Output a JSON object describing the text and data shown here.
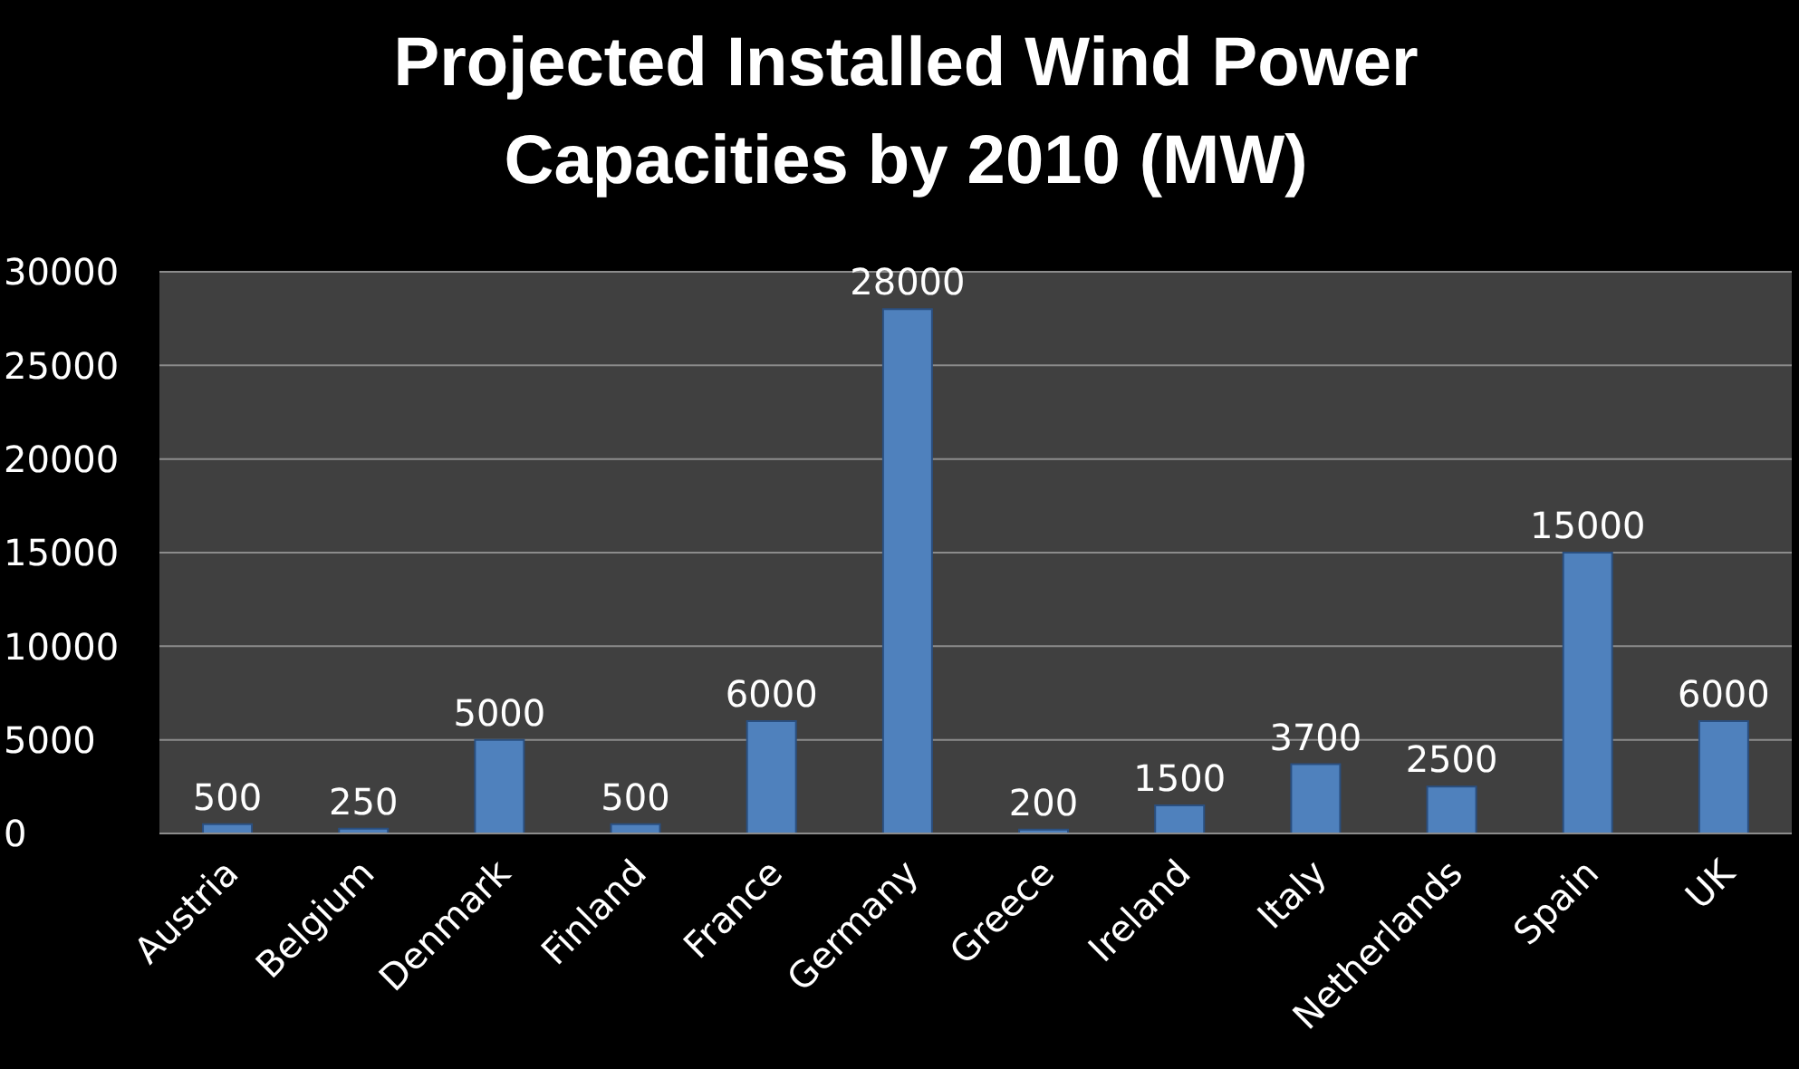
{
  "chart_data": {
    "type": "bar",
    "title": "Projected Installed Wind Power Capacities by 2010 (MW)",
    "categories": [
      "Austria",
      "Belgium",
      "Denmark",
      "Finland",
      "France",
      "Germany",
      "Greece",
      "Ireland",
      "Italy",
      "Netherlands",
      "Spain",
      "UK"
    ],
    "values": [
      500,
      250,
      5000,
      500,
      6000,
      28000,
      200,
      1500,
      3700,
      2500,
      15000,
      6000
    ],
    "color": "#4f81bd",
    "ylim": [
      0,
      30000
    ],
    "yticks": [
      0,
      5000,
      10000,
      15000,
      20000,
      25000,
      30000
    ],
    "grid": "y",
    "data_labels": true
  }
}
